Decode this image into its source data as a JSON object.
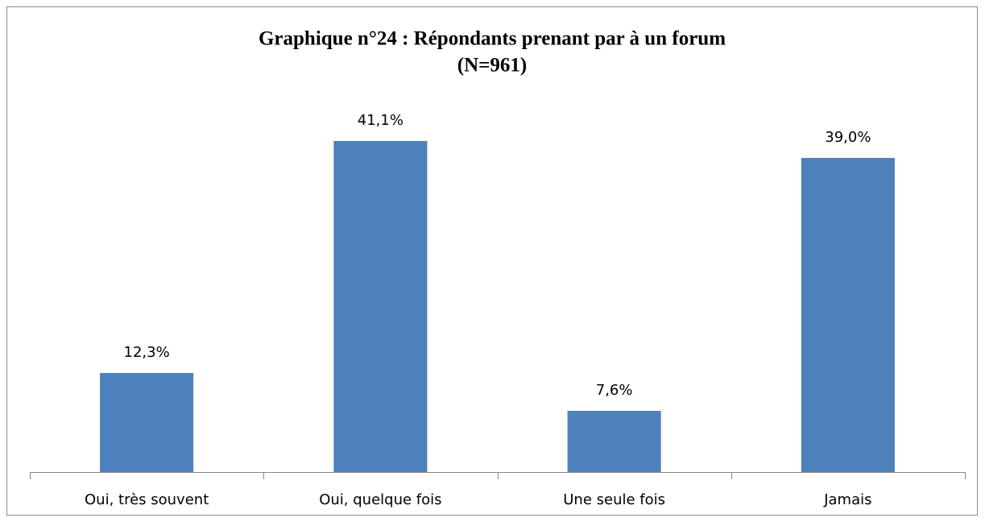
{
  "chart_data": {
    "type": "bar",
    "title": "Graphique n°24 : Répondants prenant par à un forum",
    "subtitle": "(N=961)",
    "categories": [
      "Oui, très souvent",
      "Oui, quelque fois",
      "Une seule fois",
      "Jamais"
    ],
    "values": [
      12.3,
      41.1,
      7.6,
      39.0
    ],
    "value_labels": [
      "12,3%",
      "41,1%",
      "7,6%",
      "39,0%"
    ],
    "color": "#4f81bd",
    "ylim": [
      0,
      45
    ]
  }
}
